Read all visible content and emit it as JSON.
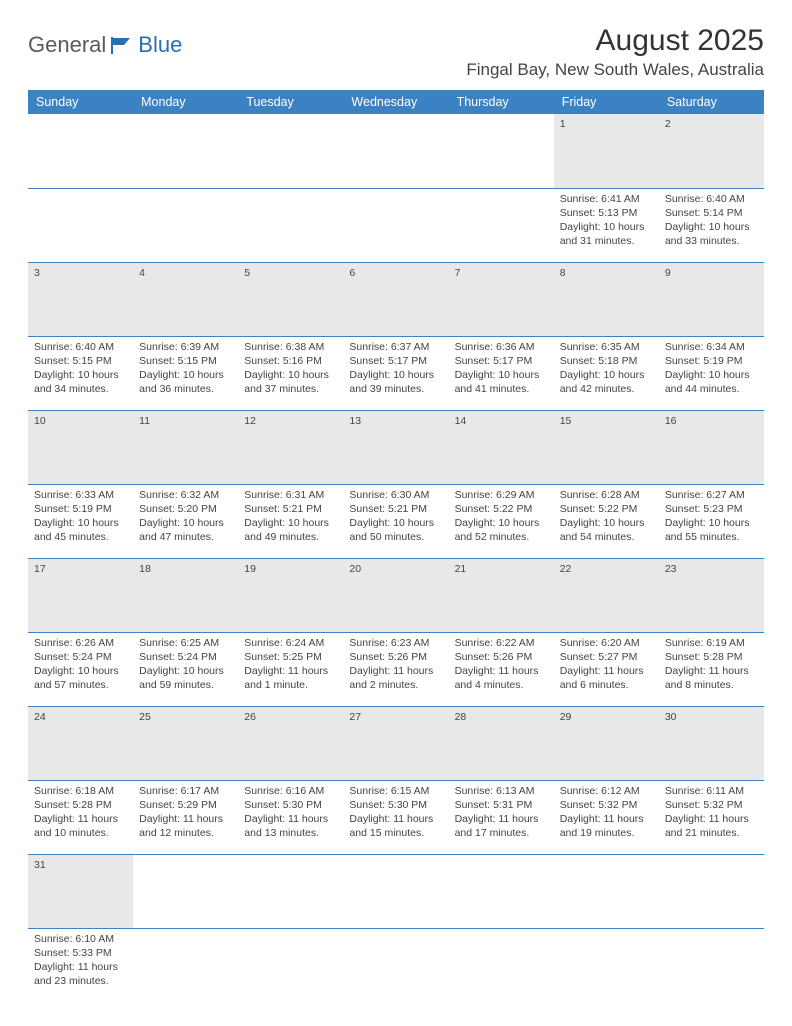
{
  "logo": {
    "text_left": "General",
    "text_right": "Blue"
  },
  "title": "August 2025",
  "location": "Fingal Bay, New South Wales, Australia",
  "colors": {
    "header_bg": "#3b82c4",
    "header_text": "#ffffff",
    "daynum_bg": "#e8e8e8",
    "border": "#3b82c4",
    "body_text": "#444444"
  },
  "day_headers": [
    "Sunday",
    "Monday",
    "Tuesday",
    "Wednesday",
    "Thursday",
    "Friday",
    "Saturday"
  ],
  "weeks": [
    [
      null,
      null,
      null,
      null,
      null,
      {
        "n": "1",
        "sr": "6:41 AM",
        "ss": "5:13 PM",
        "dl": "10 hours and 31 minutes."
      },
      {
        "n": "2",
        "sr": "6:40 AM",
        "ss": "5:14 PM",
        "dl": "10 hours and 33 minutes."
      }
    ],
    [
      {
        "n": "3",
        "sr": "6:40 AM",
        "ss": "5:15 PM",
        "dl": "10 hours and 34 minutes."
      },
      {
        "n": "4",
        "sr": "6:39 AM",
        "ss": "5:15 PM",
        "dl": "10 hours and 36 minutes."
      },
      {
        "n": "5",
        "sr": "6:38 AM",
        "ss": "5:16 PM",
        "dl": "10 hours and 37 minutes."
      },
      {
        "n": "6",
        "sr": "6:37 AM",
        "ss": "5:17 PM",
        "dl": "10 hours and 39 minutes."
      },
      {
        "n": "7",
        "sr": "6:36 AM",
        "ss": "5:17 PM",
        "dl": "10 hours and 41 minutes."
      },
      {
        "n": "8",
        "sr": "6:35 AM",
        "ss": "5:18 PM",
        "dl": "10 hours and 42 minutes."
      },
      {
        "n": "9",
        "sr": "6:34 AM",
        "ss": "5:19 PM",
        "dl": "10 hours and 44 minutes."
      }
    ],
    [
      {
        "n": "10",
        "sr": "6:33 AM",
        "ss": "5:19 PM",
        "dl": "10 hours and 45 minutes."
      },
      {
        "n": "11",
        "sr": "6:32 AM",
        "ss": "5:20 PM",
        "dl": "10 hours and 47 minutes."
      },
      {
        "n": "12",
        "sr": "6:31 AM",
        "ss": "5:21 PM",
        "dl": "10 hours and 49 minutes."
      },
      {
        "n": "13",
        "sr": "6:30 AM",
        "ss": "5:21 PM",
        "dl": "10 hours and 50 minutes."
      },
      {
        "n": "14",
        "sr": "6:29 AM",
        "ss": "5:22 PM",
        "dl": "10 hours and 52 minutes."
      },
      {
        "n": "15",
        "sr": "6:28 AM",
        "ss": "5:22 PM",
        "dl": "10 hours and 54 minutes."
      },
      {
        "n": "16",
        "sr": "6:27 AM",
        "ss": "5:23 PM",
        "dl": "10 hours and 55 minutes."
      }
    ],
    [
      {
        "n": "17",
        "sr": "6:26 AM",
        "ss": "5:24 PM",
        "dl": "10 hours and 57 minutes."
      },
      {
        "n": "18",
        "sr": "6:25 AM",
        "ss": "5:24 PM",
        "dl": "10 hours and 59 minutes."
      },
      {
        "n": "19",
        "sr": "6:24 AM",
        "ss": "5:25 PM",
        "dl": "11 hours and 1 minute."
      },
      {
        "n": "20",
        "sr": "6:23 AM",
        "ss": "5:26 PM",
        "dl": "11 hours and 2 minutes."
      },
      {
        "n": "21",
        "sr": "6:22 AM",
        "ss": "5:26 PM",
        "dl": "11 hours and 4 minutes."
      },
      {
        "n": "22",
        "sr": "6:20 AM",
        "ss": "5:27 PM",
        "dl": "11 hours and 6 minutes."
      },
      {
        "n": "23",
        "sr": "6:19 AM",
        "ss": "5:28 PM",
        "dl": "11 hours and 8 minutes."
      }
    ],
    [
      {
        "n": "24",
        "sr": "6:18 AM",
        "ss": "5:28 PM",
        "dl": "11 hours and 10 minutes."
      },
      {
        "n": "25",
        "sr": "6:17 AM",
        "ss": "5:29 PM",
        "dl": "11 hours and 12 minutes."
      },
      {
        "n": "26",
        "sr": "6:16 AM",
        "ss": "5:30 PM",
        "dl": "11 hours and 13 minutes."
      },
      {
        "n": "27",
        "sr": "6:15 AM",
        "ss": "5:30 PM",
        "dl": "11 hours and 15 minutes."
      },
      {
        "n": "28",
        "sr": "6:13 AM",
        "ss": "5:31 PM",
        "dl": "11 hours and 17 minutes."
      },
      {
        "n": "29",
        "sr": "6:12 AM",
        "ss": "5:32 PM",
        "dl": "11 hours and 19 minutes."
      },
      {
        "n": "30",
        "sr": "6:11 AM",
        "ss": "5:32 PM",
        "dl": "11 hours and 21 minutes."
      }
    ],
    [
      {
        "n": "31",
        "sr": "6:10 AM",
        "ss": "5:33 PM",
        "dl": "11 hours and 23 minutes."
      },
      null,
      null,
      null,
      null,
      null,
      null
    ]
  ],
  "labels": {
    "sunrise": "Sunrise:",
    "sunset": "Sunset:",
    "daylight": "Daylight:"
  }
}
